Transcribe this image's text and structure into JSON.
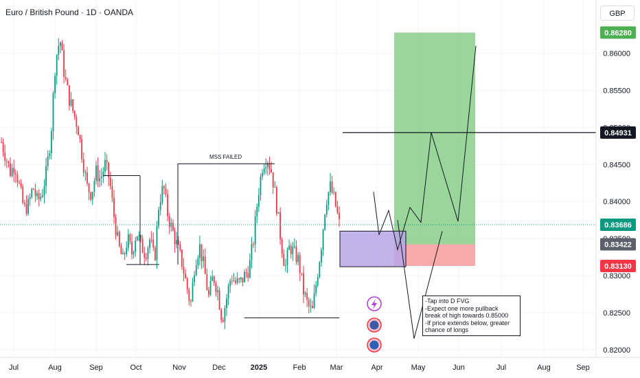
{
  "header": {
    "title": "Euro / British Pound · 1D · OANDA",
    "currency": "GBP"
  },
  "annotations": {
    "mss_label": "MSS FAILED",
    "note_lines": [
      "-Tap into D FVG",
      "-Expect one more pullback",
      "break of high towards 0.85000",
      "-If price extends below, greater",
      "chance of longs"
    ]
  },
  "colors": {
    "up": "#089981",
    "down": "#f23645",
    "target_zone": "#8fd08f",
    "stop_zone": "#f8a1a1",
    "fvg_zone": "#b8a6e8",
    "current_price": "#089981",
    "level_tag": "#131722"
  },
  "icons": [
    "lightning-icon",
    "uk-flag-icon",
    "eu-flag-icon"
  ],
  "chart_data": {
    "type": "candlestick",
    "symbol": "EURGBP",
    "xlabels": [
      "Jul",
      "Aug",
      "Sep",
      "Oct",
      "Nov",
      "Dec",
      "2025",
      "Feb",
      "Mar",
      "Apr",
      "May",
      "Jun",
      "Jul",
      "Aug",
      "Sep"
    ],
    "y_ticks": [
      "0.86000",
      "0.85500",
      "0.85000",
      "0.84500",
      "0.84000",
      "0.83500",
      "0.83000",
      "0.82500",
      "0.82000"
    ],
    "ylim": [
      0.8175,
      0.8665
    ],
    "close_path": [
      0.848,
      0.846,
      0.844,
      0.845,
      0.842,
      0.839,
      0.8395,
      0.842,
      0.84,
      0.841,
      0.844,
      0.849,
      0.859,
      0.862,
      0.857,
      0.854,
      0.852,
      0.85,
      0.846,
      0.842,
      0.841,
      0.844,
      0.843,
      0.845,
      0.843,
      0.838,
      0.834,
      0.832,
      0.835,
      0.833,
      0.836,
      0.834,
      0.833,
      0.835,
      0.832,
      0.84,
      0.842,
      0.838,
      0.836,
      0.834,
      0.832,
      0.829,
      0.826,
      0.832,
      0.834,
      0.831,
      0.827,
      0.83,
      0.828,
      0.824,
      0.827,
      0.83,
      0.829,
      0.829,
      0.83,
      0.831,
      0.835,
      0.841,
      0.845,
      0.846,
      0.844,
      0.84,
      0.835,
      0.831,
      0.834,
      0.833,
      0.832,
      0.828,
      0.826,
      0.825,
      0.8295,
      0.834,
      0.84,
      0.842,
      0.84,
      0.837
    ],
    "price_tags": [
      {
        "label": "0.86280",
        "value": 0.8628,
        "kind": "target"
      },
      {
        "label": "0.84931",
        "value": 0.84931,
        "kind": "level"
      },
      {
        "label": "0.83686",
        "value": 0.83686,
        "kind": "current"
      },
      {
        "label": "0.83422",
        "value": 0.83422,
        "kind": "entry"
      },
      {
        "label": "0.83130",
        "value": 0.8313,
        "kind": "stop"
      }
    ],
    "horizontal_levels": [
      0.84931
    ],
    "current_price": 0.83686,
    "structure_lines": [
      {
        "from": "Sep",
        "to": "Oct",
        "value": 0.8435
      },
      {
        "from": "Nov",
        "to": "2025",
        "value": 0.8451
      },
      {
        "from": "Dec",
        "to": "Mar",
        "value": 0.8243
      }
    ],
    "zones": [
      {
        "name": "target",
        "top": 0.8628,
        "bottom": 0.83422
      },
      {
        "name": "stop",
        "top": 0.83422,
        "bottom": 0.8313
      },
      {
        "name": "fvg",
        "top": 0.836,
        "bottom": 0.8312
      }
    ],
    "projection_path": [
      0.8413,
      0.8355,
      0.8388,
      0.8335,
      0.8392,
      0.8372,
      0.8493,
      0.8373,
      0.861
    ],
    "alt_projection_path": [
      0.8375,
      0.8215,
      0.836
    ]
  }
}
